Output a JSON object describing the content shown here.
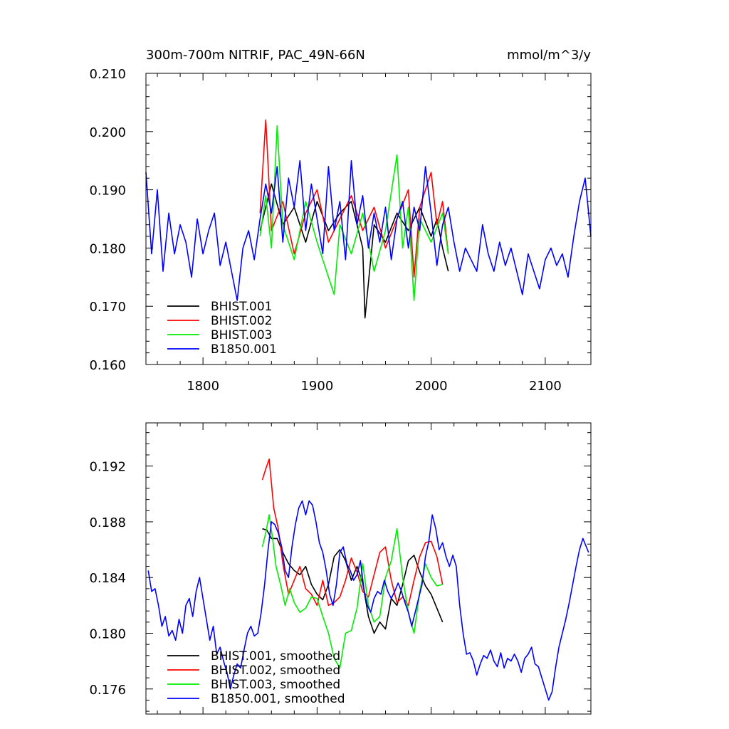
{
  "chart_data": [
    {
      "type": "line",
      "title": "300m-700m NITRIF, PAC_49N-66N",
      "units": "mmol/m^3/y",
      "xlim": [
        1750,
        2140
      ],
      "ylim": [
        0.16,
        0.21
      ],
      "x_ticks": [
        1800,
        1900,
        2000,
        2100
      ],
      "x_tick_labels": [
        "1800",
        "1900",
        "2000",
        "2100"
      ],
      "y_ticks": [
        0.16,
        0.17,
        0.18,
        0.19,
        0.2,
        0.21
      ],
      "y_tick_labels": [
        "0.160",
        "0.170",
        "0.180",
        "0.190",
        "0.200",
        "0.210"
      ],
      "grid": false,
      "legend_position": "bottom-left",
      "series": [
        {
          "name": "BHIST.001",
          "color": "#000000",
          "x": [
            1850,
            1860,
            1870,
            1880,
            1890,
            1900,
            1910,
            1920,
            1930,
            1940,
            1942,
            1950,
            1960,
            1970,
            1980,
            1990,
            2000,
            2005,
            2010,
            2015
          ],
          "y": [
            0.183,
            0.191,
            0.184,
            0.187,
            0.181,
            0.188,
            0.183,
            0.186,
            0.188,
            0.18,
            0.168,
            0.184,
            0.181,
            0.186,
            0.183,
            0.187,
            0.182,
            0.185,
            0.18,
            0.176
          ]
        },
        {
          "name": "BHIST.002",
          "color": "#ff0000",
          "x": [
            1850,
            1855,
            1860,
            1870,
            1880,
            1890,
            1900,
            1910,
            1920,
            1930,
            1940,
            1950,
            1960,
            1970,
            1980,
            1985,
            1990,
            2000,
            2005,
            2010,
            2015
          ],
          "y": [
            0.186,
            0.202,
            0.183,
            0.188,
            0.179,
            0.186,
            0.19,
            0.181,
            0.185,
            0.189,
            0.183,
            0.187,
            0.18,
            0.185,
            0.19,
            0.175,
            0.187,
            0.193,
            0.184,
            0.188,
            0.179
          ]
        },
        {
          "name": "BHIST.003",
          "color": "#00ee00",
          "x": [
            1850,
            1855,
            1860,
            1865,
            1870,
            1880,
            1890,
            1900,
            1910,
            1915,
            1920,
            1930,
            1940,
            1950,
            1960,
            1970,
            1975,
            1980,
            1985,
            1990,
            2000,
            2010,
            2015
          ],
          "y": [
            0.182,
            0.189,
            0.18,
            0.201,
            0.184,
            0.178,
            0.188,
            0.181,
            0.175,
            0.172,
            0.184,
            0.179,
            0.186,
            0.176,
            0.183,
            0.196,
            0.18,
            0.187,
            0.171,
            0.185,
            0.181,
            0.186,
            0.179
          ]
        },
        {
          "name": "B1850.001",
          "color": "#0000ff",
          "x": [
            1750,
            1755,
            1760,
            1765,
            1770,
            1775,
            1780,
            1785,
            1790,
            1795,
            1800,
            1805,
            1810,
            1815,
            1820,
            1825,
            1830,
            1835,
            1840,
            1845,
            1850,
            1855,
            1860,
            1865,
            1870,
            1875,
            1880,
            1885,
            1890,
            1895,
            1900,
            1905,
            1910,
            1915,
            1920,
            1925,
            1930,
            1935,
            1940,
            1945,
            1950,
            1955,
            1960,
            1965,
            1970,
            1975,
            1980,
            1985,
            1990,
            1995,
            2000,
            2005,
            2010,
            2015,
            2020,
            2025,
            2030,
            2035,
            2040,
            2045,
            2050,
            2055,
            2060,
            2065,
            2070,
            2075,
            2080,
            2085,
            2090,
            2095,
            2100,
            2105,
            2110,
            2115,
            2120,
            2125,
            2130,
            2135,
            2140
          ],
          "y": [
            0.193,
            0.179,
            0.19,
            0.176,
            0.186,
            0.179,
            0.184,
            0.181,
            0.175,
            0.185,
            0.179,
            0.183,
            0.186,
            0.177,
            0.181,
            0.176,
            0.171,
            0.18,
            0.183,
            0.178,
            0.185,
            0.191,
            0.186,
            0.194,
            0.181,
            0.192,
            0.187,
            0.195,
            0.183,
            0.191,
            0.185,
            0.179,
            0.194,
            0.183,
            0.188,
            0.178,
            0.195,
            0.184,
            0.189,
            0.18,
            0.186,
            0.181,
            0.187,
            0.178,
            0.185,
            0.188,
            0.18,
            0.187,
            0.183,
            0.194,
            0.186,
            0.177,
            0.184,
            0.187,
            0.181,
            0.176,
            0.18,
            0.178,
            0.176,
            0.184,
            0.179,
            0.176,
            0.181,
            0.177,
            0.18,
            0.176,
            0.172,
            0.179,
            0.176,
            0.173,
            0.178,
            0.18,
            0.177,
            0.179,
            0.175,
            0.182,
            0.188,
            0.192,
            0.182
          ]
        }
      ]
    },
    {
      "type": "line",
      "xlim": [
        1750,
        2140
      ],
      "ylim": [
        0.1742,
        0.1951
      ],
      "x_ticks": [
        1800,
        1900,
        2000,
        2100
      ],
      "y_ticks": [
        0.176,
        0.18,
        0.184,
        0.188,
        0.192
      ],
      "y_tick_labels": [
        "0.176",
        "0.180",
        "0.184",
        "0.188",
        "0.192"
      ],
      "grid": false,
      "legend_position": "bottom-left",
      "series": [
        {
          "name": "BHIST.001, smoothed",
          "color": "#000000",
          "x": [
            1852,
            1856,
            1860,
            1865,
            1870,
            1875,
            1880,
            1885,
            1890,
            1895,
            1900,
            1905,
            1910,
            1915,
            1920,
            1925,
            1930,
            1935,
            1940,
            1945,
            1950,
            1955,
            1960,
            1965,
            1970,
            1975,
            1980,
            1985,
            1990,
            1995,
            2000,
            2005,
            2010
          ],
          "y": [
            0.1875,
            0.1874,
            0.1868,
            0.1868,
            0.1858,
            0.185,
            0.1845,
            0.1842,
            0.1848,
            0.1835,
            0.1828,
            0.1824,
            0.1835,
            0.1855,
            0.186,
            0.1852,
            0.1838,
            0.1848,
            0.1836,
            0.1812,
            0.18,
            0.1808,
            0.1803,
            0.1825,
            0.182,
            0.1835,
            0.1852,
            0.1856,
            0.1844,
            0.1834,
            0.1828,
            0.1818,
            0.1808
          ]
        },
        {
          "name": "BHIST.002, smoothed",
          "color": "#ff0000",
          "x": [
            1852,
            1855,
            1858,
            1862,
            1866,
            1870,
            1875,
            1880,
            1885,
            1890,
            1895,
            1900,
            1905,
            1910,
            1915,
            1920,
            1925,
            1930,
            1935,
            1940,
            1945,
            1950,
            1955,
            1960,
            1965,
            1970,
            1975,
            1980,
            1985,
            1990,
            1995,
            2000,
            2005,
            2010
          ],
          "y": [
            0.191,
            0.1918,
            0.1925,
            0.189,
            0.1875,
            0.185,
            0.1828,
            0.1838,
            0.1848,
            0.1832,
            0.1828,
            0.182,
            0.1838,
            0.182,
            0.1822,
            0.1826,
            0.1838,
            0.1854,
            0.1844,
            0.183,
            0.1826,
            0.1842,
            0.1858,
            0.1862,
            0.1838,
            0.1822,
            0.1826,
            0.182,
            0.1838,
            0.1855,
            0.1865,
            0.1866,
            0.1855,
            0.1835
          ]
        },
        {
          "name": "BHIST.003, smoothed",
          "color": "#00ee00",
          "x": [
            1852,
            1855,
            1858,
            1861,
            1864,
            1868,
            1872,
            1876,
            1880,
            1885,
            1890,
            1895,
            1900,
            1905,
            1910,
            1915,
            1920,
            1925,
            1930,
            1935,
            1940,
            1945,
            1950,
            1955,
            1960,
            1965,
            1970,
            1975,
            1980,
            1985,
            1990,
            1995,
            2000,
            2005,
            2010
          ],
          "y": [
            0.1862,
            0.1872,
            0.1885,
            0.1868,
            0.1848,
            0.1835,
            0.182,
            0.1832,
            0.1822,
            0.1815,
            0.1818,
            0.1826,
            0.1825,
            0.1812,
            0.18,
            0.1782,
            0.1775,
            0.18,
            0.1802,
            0.1818,
            0.185,
            0.182,
            0.1808,
            0.1812,
            0.184,
            0.1852,
            0.1875,
            0.184,
            0.1815,
            0.18,
            0.183,
            0.185,
            0.184,
            0.1834,
            0.1835
          ]
        },
        {
          "name": "B1850.001, smoothed",
          "color": "#0000ff",
          "x": [
            1752,
            1755,
            1758,
            1761,
            1764,
            1767,
            1770,
            1773,
            1776,
            1779,
            1782,
            1785,
            1788,
            1791,
            1794,
            1797,
            1800,
            1803,
            1806,
            1809,
            1812,
            1815,
            1818,
            1821,
            1824,
            1827,
            1830,
            1833,
            1836,
            1839,
            1842,
            1845,
            1848,
            1851,
            1854,
            1857,
            1860,
            1863,
            1866,
            1869,
            1872,
            1875,
            1878,
            1881,
            1884,
            1887,
            1890,
            1893,
            1896,
            1899,
            1902,
            1905,
            1908,
            1911,
            1914,
            1917,
            1920,
            1923,
            1926,
            1929,
            1932,
            1935,
            1938,
            1941,
            1944,
            1947,
            1950,
            1953,
            1956,
            1959,
            1962,
            1965,
            1968,
            1971,
            1974,
            1977,
            1980,
            1983,
            1986,
            1989,
            1992,
            1995,
            1998,
            2001,
            2004,
            2007,
            2010,
            2013,
            2016,
            2019,
            2022,
            2025,
            2028,
            2031,
            2034,
            2037,
            2040,
            2043,
            2046,
            2049,
            2052,
            2055,
            2058,
            2061,
            2064,
            2067,
            2070,
            2073,
            2076,
            2079,
            2082,
            2085,
            2088,
            2091,
            2094,
            2097,
            2100,
            2103,
            2106,
            2109,
            2112,
            2115,
            2118,
            2121,
            2124,
            2127,
            2130,
            2133,
            2136,
            2138
          ],
          "y": [
            0.1845,
            0.183,
            0.1832,
            0.182,
            0.1805,
            0.1812,
            0.1798,
            0.1802,
            0.1795,
            0.181,
            0.18,
            0.182,
            0.1825,
            0.1812,
            0.183,
            0.184,
            0.1825,
            0.181,
            0.1795,
            0.1805,
            0.1785,
            0.179,
            0.178,
            0.1772,
            0.176,
            0.177,
            0.1778,
            0.1775,
            0.1788,
            0.18,
            0.1805,
            0.1798,
            0.18,
            0.1815,
            0.1835,
            0.186,
            0.188,
            0.1878,
            0.1872,
            0.1862,
            0.1845,
            0.184,
            0.1862,
            0.1878,
            0.189,
            0.1895,
            0.1885,
            0.1895,
            0.1892,
            0.188,
            0.1865,
            0.1858,
            0.1845,
            0.1828,
            0.182,
            0.1835,
            0.1858,
            0.1862,
            0.185,
            0.1845,
            0.1838,
            0.1842,
            0.1852,
            0.1832,
            0.182,
            0.1815,
            0.1825,
            0.183,
            0.1828,
            0.1838,
            0.183,
            0.1825,
            0.183,
            0.1836,
            0.183,
            0.1822,
            0.1815,
            0.1805,
            0.1815,
            0.1825,
            0.1835,
            0.1855,
            0.1866,
            0.1885,
            0.1875,
            0.186,
            0.1865,
            0.1855,
            0.1848,
            0.1856,
            0.1848,
            0.182,
            0.18,
            0.1785,
            0.1786,
            0.178,
            0.177,
            0.1778,
            0.1784,
            0.1782,
            0.1788,
            0.178,
            0.1776,
            0.1786,
            0.1775,
            0.1782,
            0.178,
            0.1785,
            0.178,
            0.1772,
            0.1782,
            0.1785,
            0.179,
            0.1778,
            0.1776,
            0.1768,
            0.176,
            0.1752,
            0.1758,
            0.1775,
            0.179,
            0.18,
            0.181,
            0.1822,
            0.1835,
            0.1848,
            0.186,
            0.1868,
            0.1862,
            0.1858
          ]
        }
      ]
    }
  ]
}
